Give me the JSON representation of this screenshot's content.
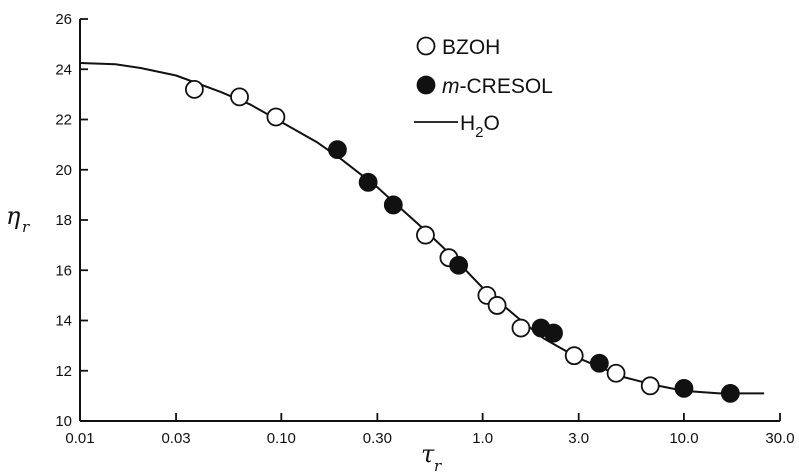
{
  "chart_data": {
    "type": "scatter",
    "xscale": "log",
    "xlim": [
      0.01,
      30.0
    ],
    "ylim": [
      10,
      26
    ],
    "xlabel": {
      "symbol": "τ",
      "subscript": "r"
    },
    "ylabel": {
      "symbol": "η",
      "subscript": "r"
    },
    "xticks": [
      {
        "value": 0.01,
        "label": "0.01"
      },
      {
        "value": 0.03,
        "label": "0.03"
      },
      {
        "value": 0.1,
        "label": "0.10"
      },
      {
        "value": 0.3,
        "label": "0.30"
      },
      {
        "value": 1.0,
        "label": "1.0"
      },
      {
        "value": 3.0,
        "label": "3.0"
      },
      {
        "value": 10.0,
        "label": "10.0"
      },
      {
        "value": 30.0,
        "label": "30.0"
      }
    ],
    "yticks": [
      {
        "value": 10,
        "label": "10"
      },
      {
        "value": 12,
        "label": "12"
      },
      {
        "value": 14,
        "label": "14"
      },
      {
        "value": 16,
        "label": "16"
      },
      {
        "value": 18,
        "label": "18"
      },
      {
        "value": 20,
        "label": "20"
      },
      {
        "value": 22,
        "label": "22"
      },
      {
        "value": 24,
        "label": "24"
      },
      {
        "value": 26,
        "label": "26"
      }
    ],
    "legend": {
      "placement": "top-center",
      "entries": [
        {
          "marker": "open-circle",
          "label": "BZOH"
        },
        {
          "marker": "filled-circle",
          "prefix": "m",
          "label": "-CRESOL"
        },
        {
          "marker": "line",
          "label": "H",
          "subscript": "2",
          "suffix": "O"
        }
      ]
    },
    "series": [
      {
        "name": "BZOH",
        "marker": "open-circle",
        "points": [
          {
            "x": 0.037,
            "y": 23.2
          },
          {
            "x": 0.062,
            "y": 22.9
          },
          {
            "x": 0.094,
            "y": 22.1
          },
          {
            "x": 0.52,
            "y": 17.4
          },
          {
            "x": 0.68,
            "y": 16.5
          },
          {
            "x": 1.05,
            "y": 15.0
          },
          {
            "x": 1.18,
            "y": 14.6
          },
          {
            "x": 1.55,
            "y": 13.7
          },
          {
            "x": 2.85,
            "y": 12.6
          },
          {
            "x": 4.6,
            "y": 11.9
          },
          {
            "x": 6.8,
            "y": 11.4
          }
        ]
      },
      {
        "name": "m-CRESOL",
        "marker": "filled-circle",
        "points": [
          {
            "x": 0.19,
            "y": 20.8
          },
          {
            "x": 0.27,
            "y": 19.5
          },
          {
            "x": 0.36,
            "y": 18.6
          },
          {
            "x": 0.76,
            "y": 16.2
          },
          {
            "x": 1.95,
            "y": 13.7
          },
          {
            "x": 2.25,
            "y": 13.5
          },
          {
            "x": 3.8,
            "y": 12.3
          },
          {
            "x": 10.0,
            "y": 11.3
          },
          {
            "x": 17.0,
            "y": 11.1
          }
        ]
      },
      {
        "name": "H2O",
        "marker": "line",
        "points": [
          {
            "x": 0.01,
            "y": 24.25
          },
          {
            "x": 0.015,
            "y": 24.2
          },
          {
            "x": 0.02,
            "y": 24.05
          },
          {
            "x": 0.03,
            "y": 23.75
          },
          {
            "x": 0.05,
            "y": 23.1
          },
          {
            "x": 0.07,
            "y": 22.6
          },
          {
            "x": 0.1,
            "y": 21.9
          },
          {
            "x": 0.15,
            "y": 21.1
          },
          {
            "x": 0.2,
            "y": 20.4
          },
          {
            "x": 0.3,
            "y": 19.3
          },
          {
            "x": 0.4,
            "y": 18.4
          },
          {
            "x": 0.5,
            "y": 17.7
          },
          {
            "x": 0.7,
            "y": 16.6
          },
          {
            "x": 1.0,
            "y": 15.3
          },
          {
            "x": 1.5,
            "y": 14.1
          },
          {
            "x": 2.0,
            "y": 13.3
          },
          {
            "x": 3.0,
            "y": 12.5
          },
          {
            "x": 5.0,
            "y": 11.75
          },
          {
            "x": 7.0,
            "y": 11.45
          },
          {
            "x": 10.0,
            "y": 11.2
          },
          {
            "x": 15.0,
            "y": 11.1
          },
          {
            "x": 25.0,
            "y": 11.1
          }
        ]
      }
    ]
  }
}
